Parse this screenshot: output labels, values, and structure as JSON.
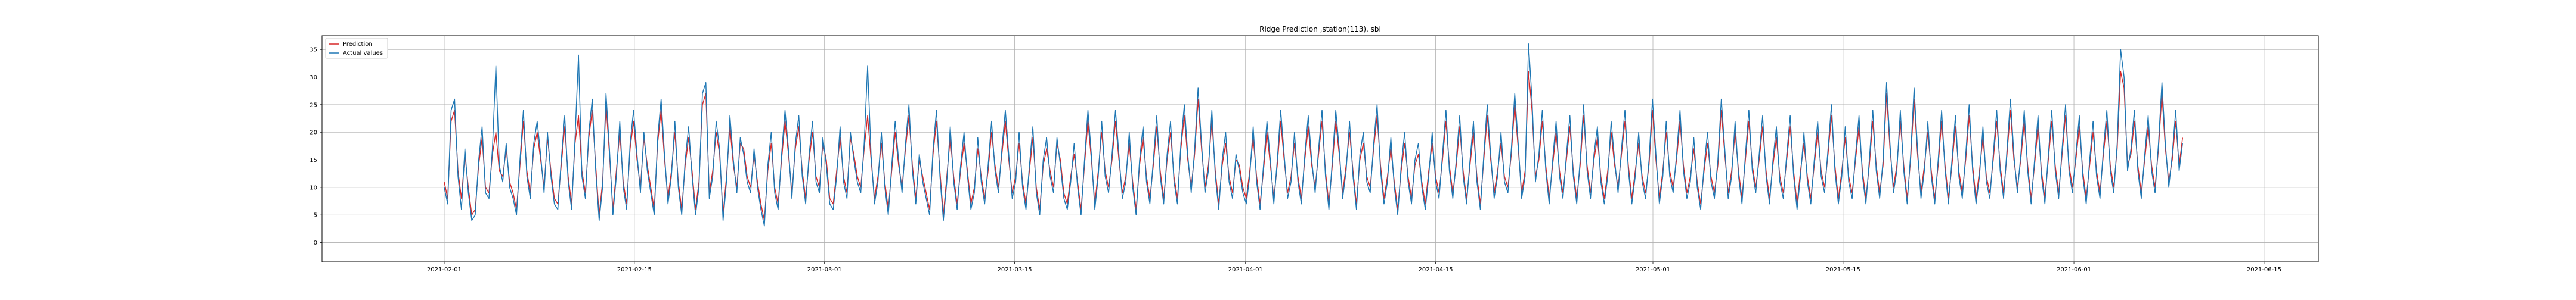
{
  "chart_data": {
    "type": "line",
    "title": "Ridge Prediction ,station(113), sbi",
    "xlabel": "",
    "ylabel": "",
    "x_start": "2021-02-01",
    "x_end": "2021-06-09",
    "xlim": [
      "2021-01-23",
      "2021-06-19"
    ],
    "ylim": [
      -3.5,
      37.5
    ],
    "x_tick_labels": [
      "2021-02-01",
      "2021-02-15",
      "2021-03-01",
      "2021-03-15",
      "2021-04-01",
      "2021-04-15",
      "2021-05-01",
      "2021-05-15",
      "2021-06-01",
      "2021-06-15"
    ],
    "y_ticks": [
      0,
      5,
      10,
      15,
      20,
      25,
      30,
      35
    ],
    "grid": true,
    "legend_position": "top-left",
    "series": [
      {
        "name": "Prediction",
        "color": "#d62728",
        "values": [
          11,
          8,
          22,
          24,
          13,
          8,
          16,
          10,
          5,
          6,
          14,
          19,
          10,
          9,
          16,
          20,
          13,
          12,
          17,
          11,
          9,
          6,
          14,
          22,
          13,
          9,
          17,
          20,
          15,
          10,
          19,
          13,
          8,
          7,
          14,
          21,
          12,
          7,
          18,
          23,
          13,
          9,
          19,
          24,
          14,
          5,
          11,
          25,
          16,
          6,
          13,
          20,
          11,
          7,
          17,
          22,
          15,
          10,
          19,
          14,
          10,
          6,
          18,
          24,
          15,
          8,
          13,
          20,
          11,
          6,
          14,
          19,
          13,
          6,
          11,
          25,
          27,
          9,
          13,
          20,
          16,
          5,
          12,
          21,
          14,
          10,
          18,
          17,
          12,
          10,
          16,
          11,
          7,
          4,
          13,
          18,
          10,
          7,
          15,
          22,
          16,
          9,
          17,
          21,
          13,
          8,
          15,
          20,
          12,
          10,
          18,
          15,
          8,
          7,
          13,
          19,
          12,
          9,
          19,
          16,
          12,
          10,
          17,
          23,
          15,
          8,
          12,
          18,
          11,
          6,
          13,
          20,
          14,
          10,
          17,
          23,
          14,
          8,
          15,
          12,
          9,
          6,
          16,
          22,
          13,
          5,
          12,
          19,
          12,
          7,
          13,
          18,
          13,
          7,
          10,
          17,
          12,
          8,
          13,
          20,
          14,
          10,
          16,
          22,
          15,
          9,
          12,
          18,
          11,
          7,
          13,
          19,
          10,
          6,
          14,
          17,
          13,
          10,
          18,
          15,
          9,
          7,
          12,
          16,
          11,
          6,
          14,
          22,
          15,
          7,
          13,
          20,
          13,
          10,
          15,
          22,
          15,
          9,
          12,
          18,
          11,
          6,
          14,
          19,
          12,
          8,
          14,
          21,
          13,
          8,
          15,
          20,
          12,
          8,
          17,
          23,
          15,
          10,
          16,
          26,
          17,
          10,
          14,
          22,
          13,
          7,
          14,
          18,
          12,
          9,
          15,
          14,
          10,
          8,
          13,
          19,
          12,
          7,
          13,
          20,
          14,
          8,
          14,
          22,
          15,
          9,
          12,
          18,
          12,
          8,
          15,
          21,
          14,
          10,
          16,
          22,
          13,
          7,
          14,
          22,
          16,
          9,
          14,
          20,
          13,
          7,
          15,
          18,
          12,
          10,
          17,
          23,
          14,
          8,
          12,
          17,
          11,
          6,
          13,
          18,
          12,
          8,
          14,
          16,
          11,
          7,
          13,
          18,
          12,
          9,
          15,
          22,
          14,
          9,
          14,
          21,
          13,
          8,
          14,
          20,
          12,
          7,
          15,
          23,
          15,
          9,
          13,
          18,
          12,
          10,
          16,
          25,
          17,
          9,
          13,
          31,
          24,
          12,
          15,
          22,
          14,
          8,
          14,
          20,
          13,
          9,
          15,
          21,
          13,
          8,
          14,
          23,
          14,
          9,
          15,
          19,
          12,
          8,
          13,
          20,
          14,
          10,
          16,
          22,
          14,
          8,
          13,
          18,
          12,
          9,
          14,
          24,
          15,
          8,
          13,
          20,
          13,
          10,
          15,
          22,
          14,
          9,
          12,
          17,
          11,
          7,
          13,
          18,
          12,
          9,
          14,
          24,
          16,
          9,
          13,
          20,
          13,
          8,
          15,
          22,
          14,
          10,
          15,
          21,
          13,
          8,
          14,
          19,
          12,
          9,
          15,
          21,
          13,
          7,
          13,
          18,
          12,
          8,
          14,
          20,
          13,
          10,
          16,
          23,
          14,
          8,
          13,
          19,
          12,
          9,
          15,
          21,
          13,
          8,
          14,
          22,
          14,
          9,
          14,
          27,
          17,
          10,
          14,
          22,
          14,
          8,
          15,
          26,
          16,
          9,
          14,
          20,
          13,
          8,
          14,
          22,
          14,
          8,
          14,
          21,
          13,
          9,
          15,
          23,
          14,
          8,
          13,
          19,
          12,
          9,
          15,
          22,
          14,
          9,
          16,
          24,
          15,
          10,
          15,
          22,
          14,
          8,
          14,
          21,
          13,
          8,
          15,
          22,
          14,
          9,
          16,
          23,
          14,
          10,
          15,
          21,
          13,
          8,
          14,
          20,
          13,
          9,
          16,
          22,
          14,
          10,
          17,
          31,
          28,
          14,
          16,
          22,
          14,
          9,
          15,
          21,
          14,
          10,
          17,
          27,
          17,
          11,
          15,
          22,
          14,
          19
        ]
      },
      {
        "name": "Actual values",
        "color": "#1f77b4",
        "values": [
          10,
          7,
          24,
          26,
          12,
          6,
          17,
          9,
          4,
          5,
          15,
          21,
          9,
          8,
          17,
          32,
          14,
          11,
          18,
          10,
          8,
          5,
          15,
          24,
          12,
          8,
          18,
          22,
          16,
          9,
          20,
          12,
          7,
          6,
          15,
          23,
          11,
          6,
          19,
          34,
          12,
          8,
          20,
          26,
          13,
          4,
          10,
          27,
          17,
          5,
          12,
          22,
          10,
          6,
          18,
          24,
          16,
          9,
          20,
          13,
          9,
          5,
          19,
          26,
          16,
          7,
          12,
          22,
          10,
          5,
          15,
          21,
          12,
          5,
          10,
          27,
          29,
          8,
          12,
          22,
          17,
          4,
          11,
          23,
          15,
          9,
          19,
          16,
          11,
          9,
          17,
          10,
          6,
          3,
          14,
          20,
          9,
          6,
          16,
          24,
          17,
          8,
          18,
          23,
          12,
          7,
          16,
          22,
          11,
          9,
          19,
          14,
          7,
          6,
          12,
          21,
          11,
          8,
          20,
          15,
          11,
          9,
          18,
          32,
          16,
          7,
          11,
          20,
          10,
          5,
          14,
          22,
          15,
          9,
          18,
          25,
          13,
          7,
          16,
          11,
          8,
          5,
          17,
          24,
          12,
          4,
          11,
          21,
          11,
          6,
          14,
          20,
          12,
          6,
          9,
          19,
          11,
          7,
          14,
          22,
          13,
          9,
          17,
          24,
          16,
          8,
          11,
          20,
          10,
          6,
          14,
          21,
          9,
          5,
          15,
          19,
          12,
          9,
          19,
          14,
          8,
          6,
          11,
          18,
          10,
          5,
          15,
          24,
          16,
          6,
          12,
          22,
          12,
          9,
          16,
          24,
          16,
          8,
          11,
          20,
          10,
          5,
          15,
          21,
          11,
          7,
          15,
          23,
          12,
          7,
          16,
          22,
          11,
          7,
          18,
          25,
          16,
          9,
          17,
          28,
          18,
          9,
          13,
          24,
          12,
          6,
          15,
          20,
          11,
          8,
          16,
          13,
          9,
          7,
          12,
          21,
          11,
          6,
          14,
          22,
          15,
          7,
          15,
          24,
          16,
          8,
          11,
          20,
          11,
          7,
          16,
          23,
          15,
          9,
          17,
          24,
          12,
          6,
          15,
          24,
          17,
          8,
          13,
          22,
          12,
          6,
          16,
          20,
          11,
          9,
          18,
          25,
          13,
          7,
          11,
          19,
          10,
          5,
          14,
          20,
          11,
          7,
          15,
          18,
          10,
          6,
          12,
          20,
          11,
          8,
          16,
          24,
          13,
          8,
          15,
          23,
          12,
          7,
          15,
          22,
          11,
          6,
          16,
          25,
          16,
          8,
          12,
          20,
          11,
          9,
          17,
          27,
          18,
          8,
          12,
          36,
          26,
          11,
          16,
          24,
          13,
          7,
          15,
          22,
          12,
          8,
          16,
          23,
          12,
          7,
          15,
          25,
          13,
          8,
          16,
          21,
          11,
          7,
          12,
          22,
          15,
          9,
          17,
          24,
          13,
          7,
          12,
          20,
          11,
          8,
          15,
          26,
          16,
          7,
          12,
          22,
          12,
          9,
          16,
          24,
          13,
          8,
          11,
          19,
          10,
          6,
          14,
          20,
          11,
          8,
          15,
          26,
          17,
          8,
          12,
          22,
          12,
          7,
          16,
          24,
          13,
          9,
          16,
          23,
          12,
          7,
          15,
          21,
          11,
          8,
          16,
          23,
          12,
          6,
          12,
          20,
          11,
          7,
          15,
          22,
          12,
          9,
          17,
          25,
          13,
          7,
          12,
          21,
          11,
          8,
          16,
          23,
          12,
          7,
          15,
          24,
          13,
          8,
          15,
          29,
          18,
          9,
          13,
          24,
          13,
          7,
          16,
          28,
          17,
          8,
          13,
          22,
          12,
          7,
          15,
          24,
          13,
          7,
          15,
          23,
          12,
          8,
          16,
          25,
          13,
          7,
          12,
          21,
          11,
          8,
          16,
          24,
          13,
          8,
          17,
          26,
          16,
          9,
          16,
          24,
          13,
          7,
          15,
          23,
          12,
          7,
          16,
          24,
          13,
          8,
          17,
          25,
          13,
          9,
          16,
          23,
          12,
          7,
          15,
          22,
          12,
          8,
          17,
          24,
          13,
          9,
          18,
          35,
          30,
          13,
          17,
          24,
          13,
          8,
          16,
          23,
          13,
          9,
          18,
          29,
          18,
          10,
          16,
          24,
          13,
          18
        ]
      }
    ]
  }
}
